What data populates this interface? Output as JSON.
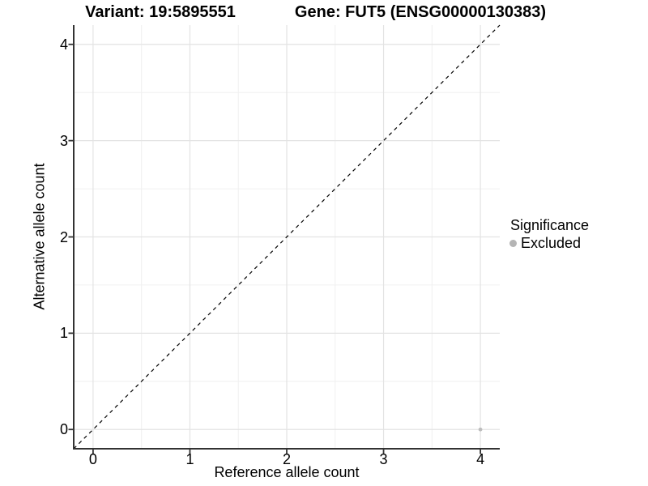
{
  "chart_data": {
    "type": "scatter",
    "title_left": "Variant: 19:5895551",
    "title_right": "Gene: FUT5 (ENSG00000130383)",
    "xlabel": "Reference allele count",
    "ylabel": "Alternative allele count",
    "xlim": [
      -0.2,
      4.2
    ],
    "ylim": [
      -0.2,
      4.2
    ],
    "x_ticks": [
      0,
      1,
      2,
      3,
      4
    ],
    "y_ticks": [
      0,
      1,
      2,
      3,
      4
    ],
    "minor_ticks": [
      0.5,
      1.5,
      2.5,
      3.5
    ],
    "grid": true,
    "reference_line": {
      "style": "dashed",
      "from": [
        -0.2,
        -0.2
      ],
      "to": [
        4.2,
        4.2
      ]
    },
    "series": [
      {
        "name": "Excluded",
        "color": "#bdbdbd",
        "points": [
          {
            "x": 4,
            "y": 0
          }
        ]
      }
    ],
    "legend": {
      "title": "Significance",
      "position": "right",
      "entries": [
        {
          "label": "Excluded",
          "color": "#b5b5b5"
        }
      ]
    }
  },
  "colors": {
    "background": "#ffffff",
    "grid_major": "#e3e3e3",
    "grid_minor": "#f0f0f0",
    "axis": "#333333",
    "reference_line": "#000000",
    "text": "#000000"
  }
}
